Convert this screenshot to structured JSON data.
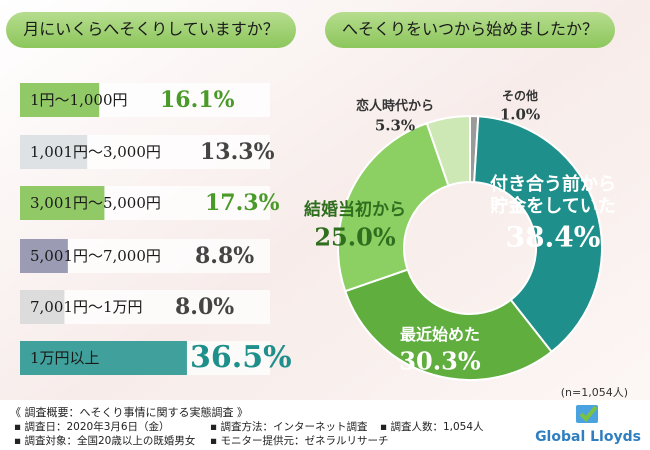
{
  "chart_data": [
    {
      "type": "bar",
      "title": "月にいくらへそくりしていますか？",
      "categories": [
        "1円〜1,000円",
        "1,001円〜3,000円",
        "3,001円〜5,000円",
        "5,001円〜7,000円",
        "7,001円〜1万円",
        "1万円以上"
      ],
      "values": [
        16.1,
        13.3,
        17.3,
        8.8,
        8.0,
        36.5
      ],
      "value_labels": [
        "16.1%",
        "13.3%",
        "17.3%",
        "8.8%",
        "8.0%",
        "36.5%"
      ],
      "colors": [
        "#7cbf4a",
        "#d9dde0",
        "#7cbf4a",
        "#8a8aa6",
        "#d6d6d6",
        "#1e8f8a"
      ]
    },
    {
      "type": "pie",
      "title": "へそくりをいつから始めましたか？",
      "categories": [
        "その他",
        "付き合う前から貯金をしていた",
        "最近始めた",
        "結婚当初から",
        "恋人時代から"
      ],
      "values": [
        1.0,
        38.4,
        30.3,
        25.0,
        5.3
      ],
      "value_labels": [
        "1.0%",
        "38.4%",
        "30.3%",
        "25.0%",
        "5.3%"
      ],
      "colors": [
        "#9a9a9a",
        "#1e8f8a",
        "#5fae3e",
        "#8ccf62",
        "#cde8b4"
      ],
      "note": "(n=1,054人)"
    }
  ],
  "survey": {
    "heading": "《 調査概要：へそくり事情に関する実態調査 》",
    "items": [
      "調査日：2020年3月6日（金）",
      "調査方法：インターネット調査",
      "調査人数：1,054人",
      "調査対象：全国20歳以上の既婚男女",
      "モニター提供元：ゼネラルリサーチ"
    ]
  },
  "logo": "Global Lloyds"
}
